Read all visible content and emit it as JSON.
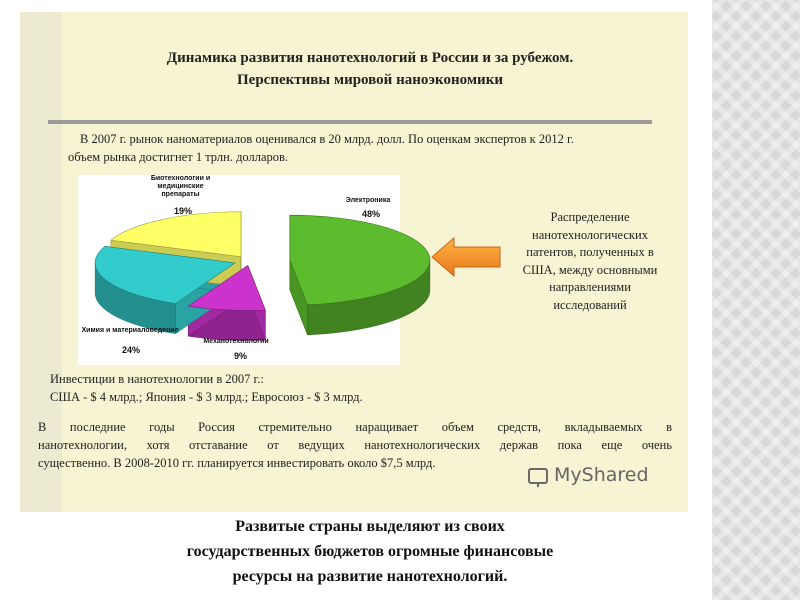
{
  "header": {
    "title": [
      "Динамика развития нанотехнологий в России и за рубежом.",
      "Перспективы мировой наноэкономики"
    ]
  },
  "intro": [
    "В 2007 г. рынок наноматериалов оценивался в 20 млрд. долл. По оценкам экспертов к 2012 г.",
    "объем рынка достигнет 1 трлн. долларов."
  ],
  "chart_data": {
    "type": "pie",
    "categories": [
      "Электроника",
      "Механотехнологии",
      "Химия и материаловедение",
      "Биотехнологии и медицинские препараты"
    ],
    "values": [
      48,
      9,
      24,
      19
    ],
    "value_labels": [
      "48%",
      "9%",
      "24%",
      "19%"
    ],
    "colors": [
      "#5dbb2e",
      "#cc33cc",
      "#33cccc",
      "#ffff66"
    ]
  },
  "callout": [
    "Распределение",
    "нанотехнологических",
    "патентов, полученных в",
    "США, между основными",
    "направлениями",
    "исследований"
  ],
  "investments": [
    "Инвестиции в нанотехнологии в 2007 г.:",
    "США - $  4 млрд.; Япония - $ 3 млрд.; Евросоюз - $ 3 млрд."
  ],
  "outro": [
    "В последние годы Россия стремительно наращивает объем средств, вкладываемых в",
    "нанотехнологии, хотя отставание от ведущих нанотехнологических держав пока еще очень",
    "существенно. В 2008-2010 гг. планируется инвестировать около $7,5 млрд."
  ],
  "watermark": "MyShared",
  "caption": [
    "Развитые страны выделяют из своих",
    "государственных бюджетов огромные финансовые",
    "ресурсы на развитие нанотехнологий."
  ]
}
